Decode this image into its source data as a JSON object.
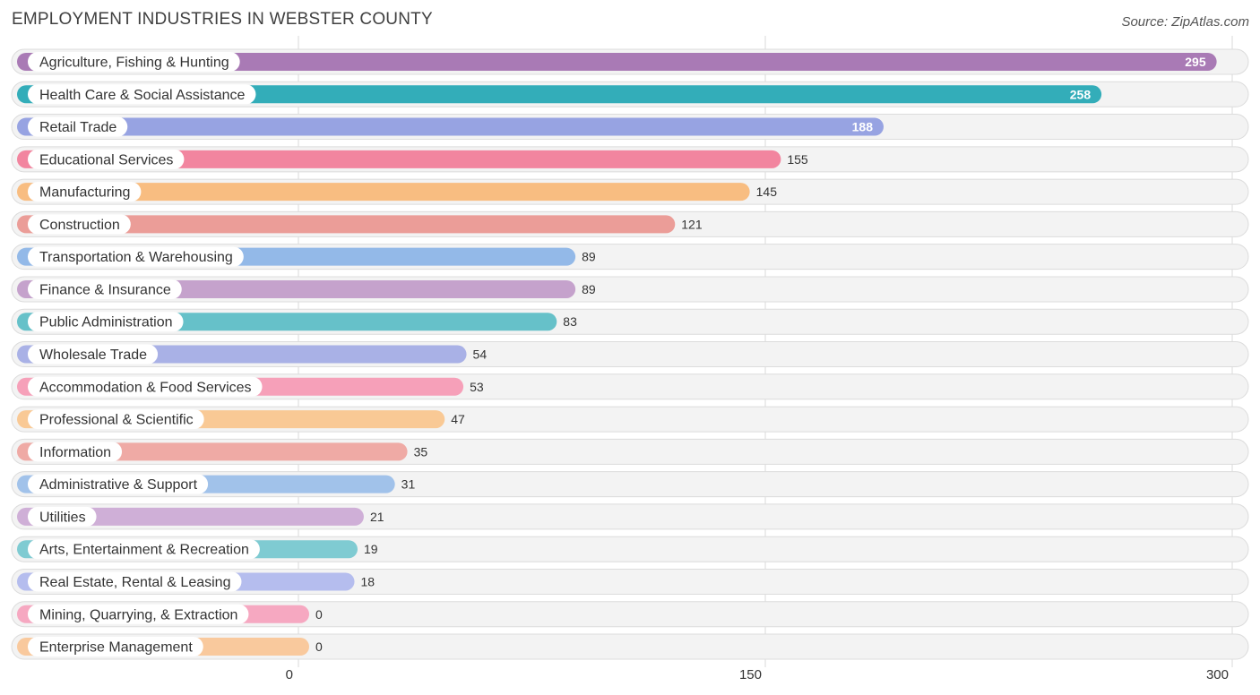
{
  "chart_data": {
    "type": "bar",
    "orientation": "horizontal",
    "title": "EMPLOYMENT INDUSTRIES IN WEBSTER COUNTY",
    "source": "Source: ZipAtlas.com",
    "xlim": [
      0,
      300
    ],
    "ticks": [
      0,
      150,
      300
    ],
    "grid": true,
    "categories": [
      "Agriculture, Fishing & Hunting",
      "Health Care & Social Assistance",
      "Retail Trade",
      "Educational Services",
      "Manufacturing",
      "Construction",
      "Transportation & Warehousing",
      "Finance & Insurance",
      "Public Administration",
      "Wholesale Trade",
      "Accommodation & Food Services",
      "Professional & Scientific",
      "Information",
      "Administrative & Support",
      "Utilities",
      "Arts, Entertainment & Recreation",
      "Real Estate, Rental & Leasing",
      "Mining, Quarrying, & Extraction",
      "Enterprise Management"
    ],
    "values": [
      295,
      258,
      188,
      155,
      145,
      121,
      89,
      89,
      83,
      54,
      53,
      47,
      35,
      31,
      21,
      19,
      18,
      0,
      0
    ],
    "colors": [
      "#a97ab5",
      "#33adb9",
      "#97a3e2",
      "#f2859f",
      "#f8bd81",
      "#eb9d98",
      "#93b9e8",
      "#c5a2cc",
      "#66c1c9",
      "#a9b1e6",
      "#f6a0b9",
      "#f9c995",
      "#efaaa5",
      "#a1c2ea",
      "#cfafd7",
      "#7fcbd2",
      "#b5bdee",
      "#f6a8c1",
      "#f9c99d"
    ]
  }
}
